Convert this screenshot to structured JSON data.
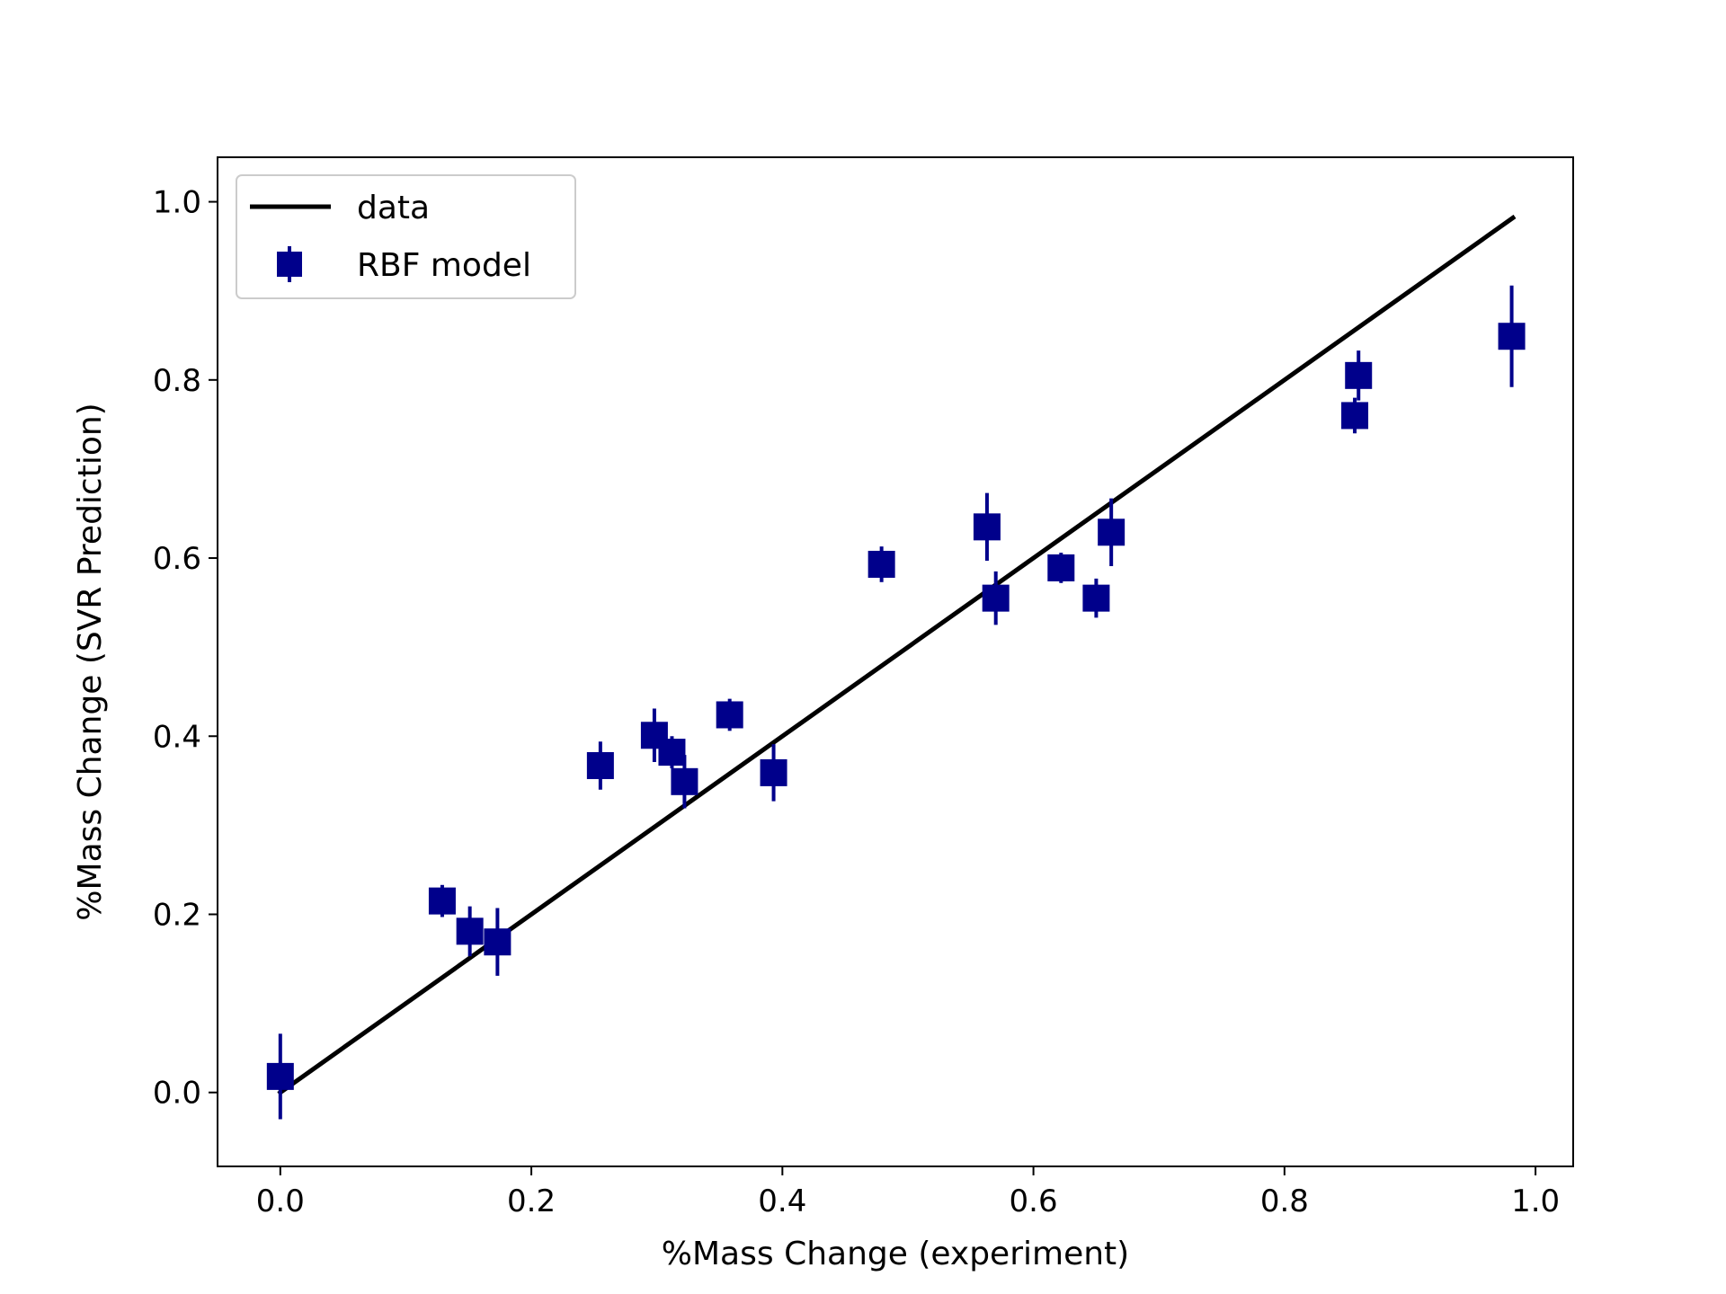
{
  "chart_data": {
    "type": "scatter",
    "title": "",
    "xlabel": "%Mass Change (experiment)",
    "ylabel": "%Mass Change (SVR Prediction)",
    "xlim": [
      -0.05,
      1.03
    ],
    "ylim": [
      -0.083,
      1.05
    ],
    "xticks": [
      "0.0",
      "0.2",
      "0.4",
      "0.6",
      "0.8",
      "1.0"
    ],
    "yticks": [
      "0.0",
      "0.2",
      "0.4",
      "0.6",
      "0.8",
      "1.0"
    ],
    "grid": false,
    "legend_placement": "upper-left",
    "legend": {
      "line_label": "data",
      "marker_label": "RBF model"
    },
    "colors": {
      "line": "#000000",
      "marker": "#00008b"
    },
    "series": [
      {
        "name": "data",
        "kind": "line",
        "x": [
          0.0,
          0.982
        ],
        "y": [
          0.0,
          0.982
        ]
      },
      {
        "name": "RBF model",
        "kind": "errorbar",
        "marker": "square",
        "points": [
          {
            "x": 0.0,
            "y": 0.018,
            "err": 0.048
          },
          {
            "x": 0.129,
            "y": 0.215,
            "err": 0.018
          },
          {
            "x": 0.151,
            "y": 0.181,
            "err": 0.028
          },
          {
            "x": 0.173,
            "y": 0.169,
            "err": 0.038
          },
          {
            "x": 0.255,
            "y": 0.367,
            "err": 0.027
          },
          {
            "x": 0.298,
            "y": 0.401,
            "err": 0.03
          },
          {
            "x": 0.312,
            "y": 0.382,
            "err": 0.018
          },
          {
            "x": 0.322,
            "y": 0.349,
            "err": 0.03
          },
          {
            "x": 0.358,
            "y": 0.424,
            "err": 0.018
          },
          {
            "x": 0.393,
            "y": 0.359,
            "err": 0.032
          },
          {
            "x": 0.479,
            "y": 0.593,
            "err": 0.02
          },
          {
            "x": 0.563,
            "y": 0.635,
            "err": 0.038
          },
          {
            "x": 0.57,
            "y": 0.555,
            "err": 0.03
          },
          {
            "x": 0.622,
            "y": 0.589,
            "err": 0.017
          },
          {
            "x": 0.65,
            "y": 0.555,
            "err": 0.022
          },
          {
            "x": 0.662,
            "y": 0.629,
            "err": 0.038
          },
          {
            "x": 0.856,
            "y": 0.76,
            "err": 0.02
          },
          {
            "x": 0.859,
            "y": 0.805,
            "err": 0.028
          },
          {
            "x": 0.981,
            "y": 0.849,
            "err": 0.057
          }
        ]
      }
    ]
  }
}
